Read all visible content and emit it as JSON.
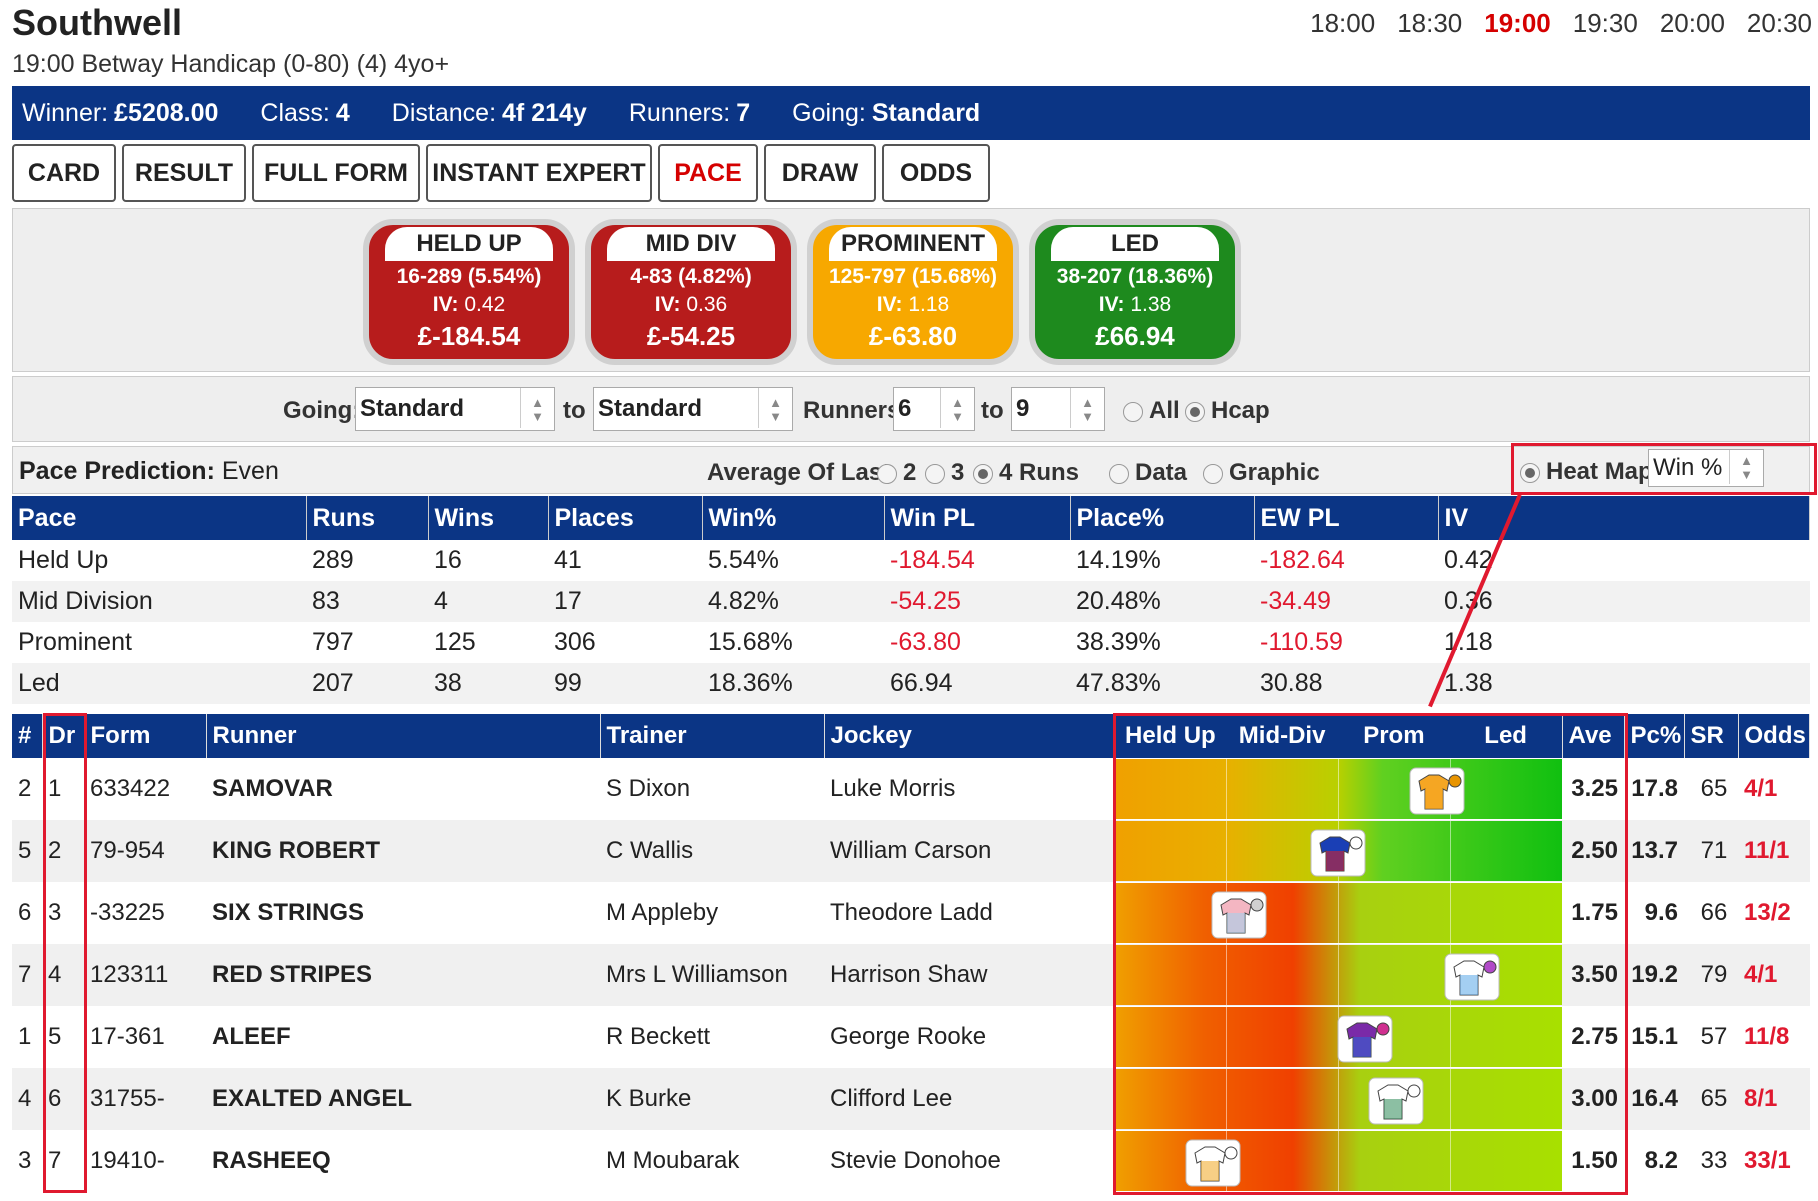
{
  "header": {
    "course": "Southwell",
    "race": "19:00 Betway Handicap (0-80) (4) 4yo+",
    "times": [
      "18:00",
      "18:30",
      "19:00",
      "19:30",
      "20:00",
      "20:30"
    ],
    "active_time": "19:00"
  },
  "info": {
    "winner_label": "Winner:",
    "winner": "£5208.00",
    "class_label": "Class:",
    "class": "4",
    "distance_label": "Distance:",
    "distance": "4f 214y",
    "runners_label": "Runners:",
    "runners": "7",
    "going_label": "Going:",
    "going": "Standard"
  },
  "tabs": [
    "CARD",
    "RESULT",
    "FULL FORM",
    "INSTANT EXPERT",
    "PACE",
    "DRAW",
    "ODDS"
  ],
  "active_tab": "PACE",
  "pace_cards": [
    {
      "title": "HELD UP",
      "stat": "16-289 (5.54%)",
      "iv_label": "IV:",
      "iv": "0.42",
      "pl": "£-184.54",
      "color": "#b71c1c"
    },
    {
      "title": "MID DIV",
      "stat": "4-83 (4.82%)",
      "iv_label": "IV:",
      "iv": "0.36",
      "pl": "£-54.25",
      "color": "#b71c1c"
    },
    {
      "title": "PROMINENT",
      "stat": "125-797 (15.68%)",
      "iv_label": "IV:",
      "iv": "1.18",
      "pl": "£-63.80",
      "color": "#f7a800"
    },
    {
      "title": "LED",
      "stat": "38-207 (18.36%)",
      "iv_label": "IV:",
      "iv": "1.38",
      "pl": "£66.94",
      "color": "#1e8a1e"
    }
  ],
  "filters": {
    "going_label": "Going:",
    "going_from": "Standard",
    "to_label": "to",
    "going_to": "Standard",
    "runners_label": "Runners:",
    "runners_from": "6",
    "runners_to": "9",
    "all_label": "All",
    "hcap_label": "Hcap"
  },
  "prediction": {
    "label": "Pace Prediction",
    "value": "Even",
    "avg_label": "Average Of Last",
    "opt2": "2",
    "opt3": "3",
    "opt4": "4 Runs",
    "data_label": "Data",
    "graphic_label": "Graphic",
    "heatmap_label": "Heat Map",
    "metric": "Win %"
  },
  "stats_table": {
    "headers": [
      "Pace",
      "Runs",
      "Wins",
      "Places",
      "Win%",
      "Win PL",
      "Place%",
      "EW PL",
      "IV"
    ],
    "rows": [
      [
        "Held Up",
        "289",
        "16",
        "41",
        "5.54%",
        "-184.54",
        "14.19%",
        "-182.64",
        "0.42"
      ],
      [
        "Mid Division",
        "83",
        "4",
        "17",
        "4.82%",
        "-54.25",
        "20.48%",
        "-34.49",
        "0.36"
      ],
      [
        "Prominent",
        "797",
        "125",
        "306",
        "15.68%",
        "-63.80",
        "38.39%",
        "-110.59",
        "1.18"
      ],
      [
        "Led",
        "207",
        "38",
        "99",
        "18.36%",
        "66.94",
        "47.83%",
        "30.88",
        "1.38"
      ]
    ]
  },
  "runners_table": {
    "headers": {
      "num": "#",
      "dr": "Dr",
      "form": "Form",
      "runner": "Runner",
      "trainer": "Trainer",
      "jockey": "Jockey",
      "held_up": "Held Up",
      "mid_div": "Mid-Div",
      "prom": "Prom",
      "led": "Led",
      "ave": "Ave",
      "pc": "Pc%",
      "sr": "SR",
      "odds": "Odds"
    },
    "rows": [
      {
        "num": "2",
        "dr": "1",
        "form": "633422",
        "runner": "SAMOVAR",
        "trainer": "S Dixon",
        "jockey": "Luke Morris",
        "ave": "3.25",
        "pc": "17.8",
        "sr": "65",
        "odds": "4/1",
        "silk": "orange",
        "heat": "warm-green"
      },
      {
        "num": "5",
        "dr": "2",
        "form": "79-954",
        "runner": "KING ROBERT",
        "trainer": "C Wallis",
        "jockey": "William Carson",
        "ave": "2.50",
        "pc": "13.7",
        "sr": "71",
        "odds": "11/1",
        "silk": "red-blue-stars",
        "heat": "warm-green"
      },
      {
        "num": "6",
        "dr": "3",
        "form": "-33225",
        "runner": "SIX STRINGS",
        "trainer": "M Appleby",
        "jockey": "Theodore Ladd",
        "ave": "1.75",
        "pc": "9.6",
        "sr": "66",
        "odds": "13/2",
        "silk": "pink-lightblue",
        "heat": "red-yellowgreen"
      },
      {
        "num": "7",
        "dr": "4",
        "form": "123311",
        "runner": "RED STRIPES",
        "trainer": "Mrs L Williamson",
        "jockey": "Harrison Shaw",
        "ave": "3.50",
        "pc": "19.2",
        "sr": "79",
        "odds": "4/1",
        "silk": "white-blue-stars",
        "heat": "red-yellowgreen"
      },
      {
        "num": "1",
        "dr": "5",
        "form": "17-361",
        "runner": "ALEEF",
        "trainer": "R Beckett",
        "jockey": "George Rooke",
        "ave": "2.75",
        "pc": "15.1",
        "sr": "57",
        "odds": "11/8",
        "silk": "purple-blue",
        "heat": "red-yellowgreen"
      },
      {
        "num": "4",
        "dr": "6",
        "form": "31755-",
        "runner": "EXALTED ANGEL",
        "trainer": "K Burke",
        "jockey": "Clifford Lee",
        "ave": "3.00",
        "pc": "16.4",
        "sr": "65",
        "odds": "8/1",
        "silk": "white-green",
        "heat": "red-yellowgreen"
      },
      {
        "num": "3",
        "dr": "7",
        "form": "19410-",
        "runner": "RASHEEQ",
        "trainer": "M Moubarak",
        "jockey": "Stevie Donohoe",
        "ave": "1.50",
        "pc": "8.2",
        "sr": "33",
        "odds": "33/1",
        "silk": "white-gold",
        "heat": "red-yellowgreen"
      }
    ]
  }
}
